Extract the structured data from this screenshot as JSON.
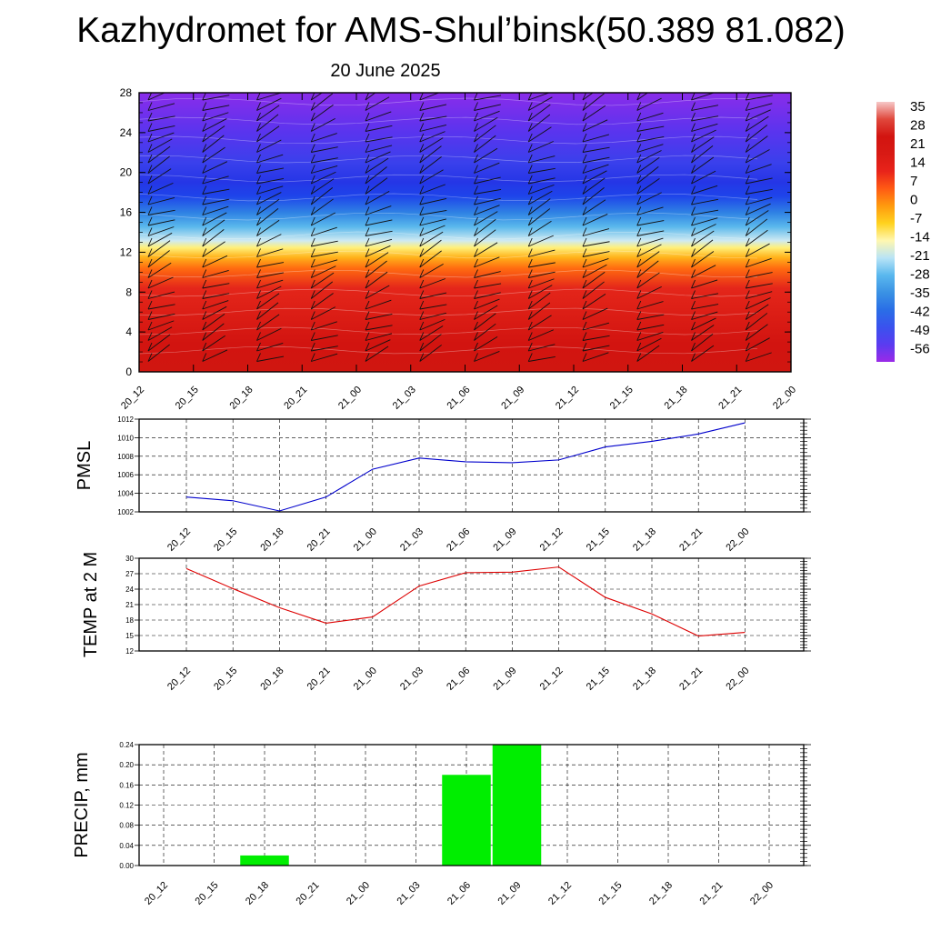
{
  "header": {
    "title": "Kazhydromet for AMS-Shul’binsk(50.389 81.082)",
    "date": "20 June 2025"
  },
  "chart_data": [
    {
      "type": "heatmap",
      "x_ticks": [
        "20_12",
        "20_15",
        "20_18",
        "20_21",
        "21_00",
        "21_03",
        "21_06",
        "21_09",
        "21_12",
        "21_15",
        "21_18",
        "21_21",
        "22_00"
      ],
      "y_ticks": [
        0,
        4,
        8,
        12,
        16,
        20,
        24,
        28
      ],
      "ylim": [
        0,
        28
      ],
      "colorbar_labels": [
        "35",
        "28",
        "21",
        "14",
        "7",
        "0",
        "-7",
        "-14",
        "-21",
        "-28",
        "-35",
        "-42",
        "-49",
        "-56"
      ],
      "colorbar_colors": [
        "#9b2ae8",
        "#5a3cf0",
        "#3a52ee",
        "#2a6ee6",
        "#3a92e4",
        "#5ab8ee",
        "#b9e4f6",
        "#fff7b0",
        "#ffd21e",
        "#ff9a0e",
        "#ff5a14",
        "#e8231a",
        "#d81a14",
        "#d21410",
        "#e0483c",
        "#f6c8c8"
      ],
      "grid": false
    },
    {
      "type": "line",
      "ylabel": "PMSL",
      "x_ticks": [
        "20_12",
        "20_15",
        "20_18",
        "20_21",
        "21_00",
        "21_03",
        "21_06",
        "21_09",
        "21_12",
        "21_15",
        "21_18",
        "21_21",
        "22_00"
      ],
      "y_ticks": [
        1002,
        1004,
        1006,
        1008,
        1010,
        1012
      ],
      "ylim": [
        1002,
        1012
      ],
      "values": [
        1003.6,
        1003.2,
        1002.1,
        1003.6,
        1006.6,
        1007.8,
        1007.4,
        1007.3,
        1007.6,
        1009.0,
        1009.6,
        1010.4,
        1011.6
      ],
      "color": "#0000cc",
      "grid": true
    },
    {
      "type": "line",
      "ylabel": "TEMP at 2 M",
      "x_ticks": [
        "20_12",
        "20_15",
        "20_18",
        "20_21",
        "21_00",
        "21_03",
        "21_06",
        "21_09",
        "21_12",
        "21_15",
        "21_18",
        "21_21",
        "22_00"
      ],
      "y_ticks": [
        12,
        15,
        18,
        21,
        24,
        27,
        30
      ],
      "ylim": [
        12,
        30
      ],
      "values": [
        28.0,
        24.1,
        20.4,
        17.4,
        18.6,
        24.6,
        27.2,
        27.3,
        28.3,
        22.4,
        19.2,
        14.9,
        15.6
      ],
      "color": "#dd0000",
      "grid": true
    },
    {
      "type": "bar",
      "ylabel": "PRECIP, mm",
      "x_ticks": [
        "20_12",
        "20_15",
        "20_18",
        "20_21",
        "21_00",
        "21_03",
        "21_06",
        "21_09",
        "21_12",
        "21_15",
        "21_18",
        "21_21",
        "22_00"
      ],
      "y_ticks": [
        "0.00",
        "0.04",
        "0.08",
        "0.12",
        "0.16",
        "0.20",
        "0.24"
      ],
      "ylim": [
        0,
        0.24
      ],
      "values": [
        0,
        0,
        0.02,
        0,
        0,
        0,
        0.18,
        0.24,
        0,
        0,
        0,
        0,
        0
      ],
      "color": "#00ee00",
      "grid": true
    }
  ]
}
